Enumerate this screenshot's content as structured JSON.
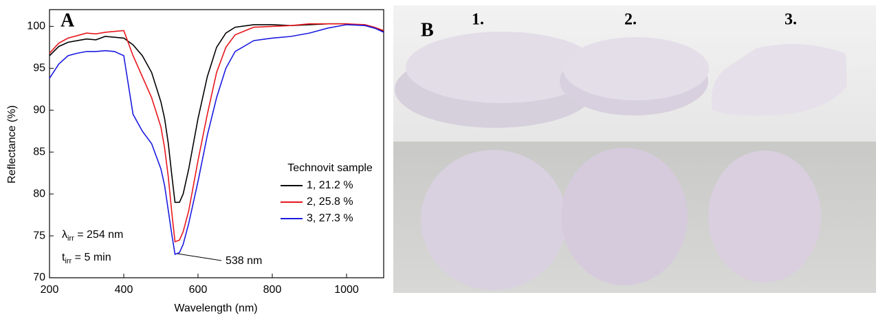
{
  "chart_data": {
    "type": "line",
    "panel_label": "A",
    "x_label": "Wavelength (nm)",
    "y_label": "Reflectance (%)",
    "x": [
      200,
      225,
      250,
      275,
      300,
      325,
      350,
      375,
      400,
      425,
      450,
      475,
      500,
      510,
      520,
      530,
      538,
      550,
      560,
      575,
      600,
      625,
      650,
      675,
      700,
      750,
      800,
      850,
      900,
      950,
      1000,
      1050,
      1075,
      1100
    ],
    "series": [
      {
        "name": "1, 21.2 %",
        "color": "#000000",
        "values": [
          96.5,
          97.6,
          98.1,
          98.3,
          98.5,
          98.4,
          98.8,
          98.7,
          98.6,
          97.8,
          96.5,
          94.5,
          91,
          89,
          86,
          82,
          79,
          79,
          80,
          83,
          89,
          94,
          97.5,
          99.2,
          99.9,
          100.2,
          100.2,
          100.1,
          100.2,
          100.3,
          100.3,
          100.1,
          99.8,
          99.4
        ]
      },
      {
        "name": "2, 25.8 %",
        "color": "#e8161b",
        "values": [
          96.8,
          98,
          98.6,
          98.9,
          99.2,
          99.1,
          99.3,
          99.4,
          99.5,
          96.5,
          94,
          91.5,
          88,
          85.5,
          82,
          77.5,
          74.3,
          74.5,
          75.5,
          78,
          84,
          89.5,
          94.5,
          97.5,
          99,
          99.9,
          100,
          100.1,
          100.3,
          100.3,
          100.3,
          100.2,
          99.9,
          99.5
        ]
      },
      {
        "name": "3, 27.3 %",
        "color": "#1a1ae0",
        "values": [
          93.8,
          95.5,
          96.5,
          96.8,
          97,
          97,
          97.1,
          97,
          96.5,
          89.5,
          87.5,
          86,
          83,
          81,
          78,
          75,
          72.8,
          73,
          74,
          76.5,
          81.5,
          87,
          91.5,
          95,
          97,
          98.3,
          98.6,
          98.8,
          99.2,
          99.8,
          100.2,
          100.1,
          99.8,
          99.3
        ]
      }
    ],
    "legend_title": "Technovit sample",
    "xlim": [
      200,
      1100
    ],
    "xticks": [
      200,
      400,
      600,
      800,
      1000
    ],
    "ylim": [
      70,
      102
    ],
    "yticks": [
      70,
      75,
      80,
      85,
      90,
      95,
      100
    ],
    "annotations": [
      {
        "symbol": "λ",
        "subscript": "irr",
        "text": " = 254 nm"
      },
      {
        "symbol": "t",
        "subscript": "irr",
        "text": " = 5 min"
      },
      {
        "text": "538 nm"
      }
    ]
  },
  "photo": {
    "panel_label": "B",
    "samples": [
      "1.",
      "2.",
      "3."
    ]
  }
}
